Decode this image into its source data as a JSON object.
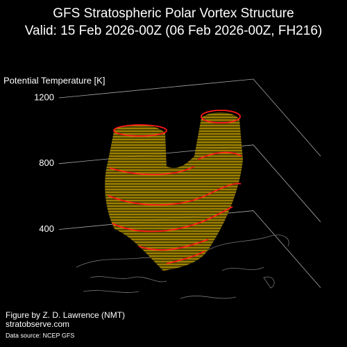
{
  "chart_data": {
    "type": "vortex3d",
    "title": "GFS Stratospheric Polar Vortex Structure",
    "subtitle": "Valid: 15 Feb 2026-00Z  (06 Feb 2026-00Z, FH216)",
    "zlabel": "Potential Temperature [K]",
    "zlim": [
      200,
      1200
    ],
    "zticks": [
      400,
      800,
      1200
    ],
    "credit": "Figure by Z. D. Lawrence (NMT)",
    "website": "stratobserve.com",
    "source": "Data source: NCEP GFS"
  }
}
